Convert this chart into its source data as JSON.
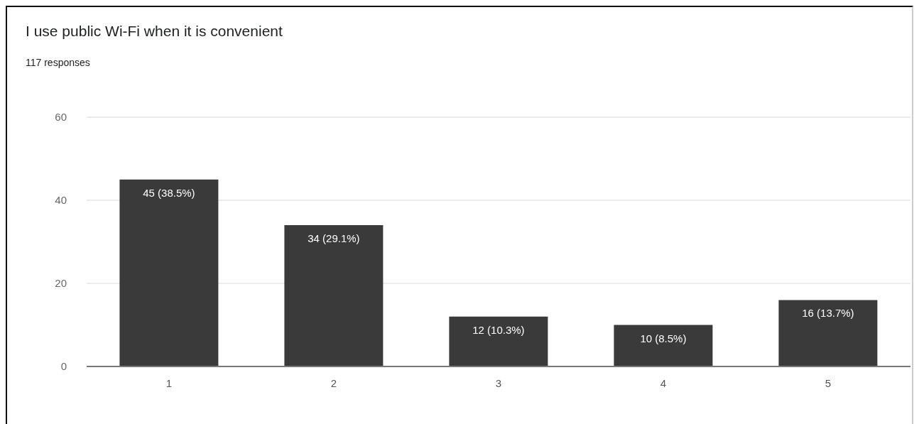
{
  "chart_data": {
    "type": "bar",
    "title": "I use public Wi-Fi when it is convenient",
    "subtitle": "117 responses",
    "categories": [
      "1",
      "2",
      "3",
      "4",
      "5"
    ],
    "values": [
      45,
      34,
      12,
      10,
      16
    ],
    "color": "#3a3a3a",
    "value_labels": [
      "45 (38.5%)",
      "34 (29.1%)",
      "12 (10.3%)",
      "10 (8.5%)",
      "16 (13.7%)"
    ],
    "ylim": [
      0,
      60
    ],
    "yticks": [
      0,
      20,
      40,
      60
    ],
    "grid": "y"
  }
}
